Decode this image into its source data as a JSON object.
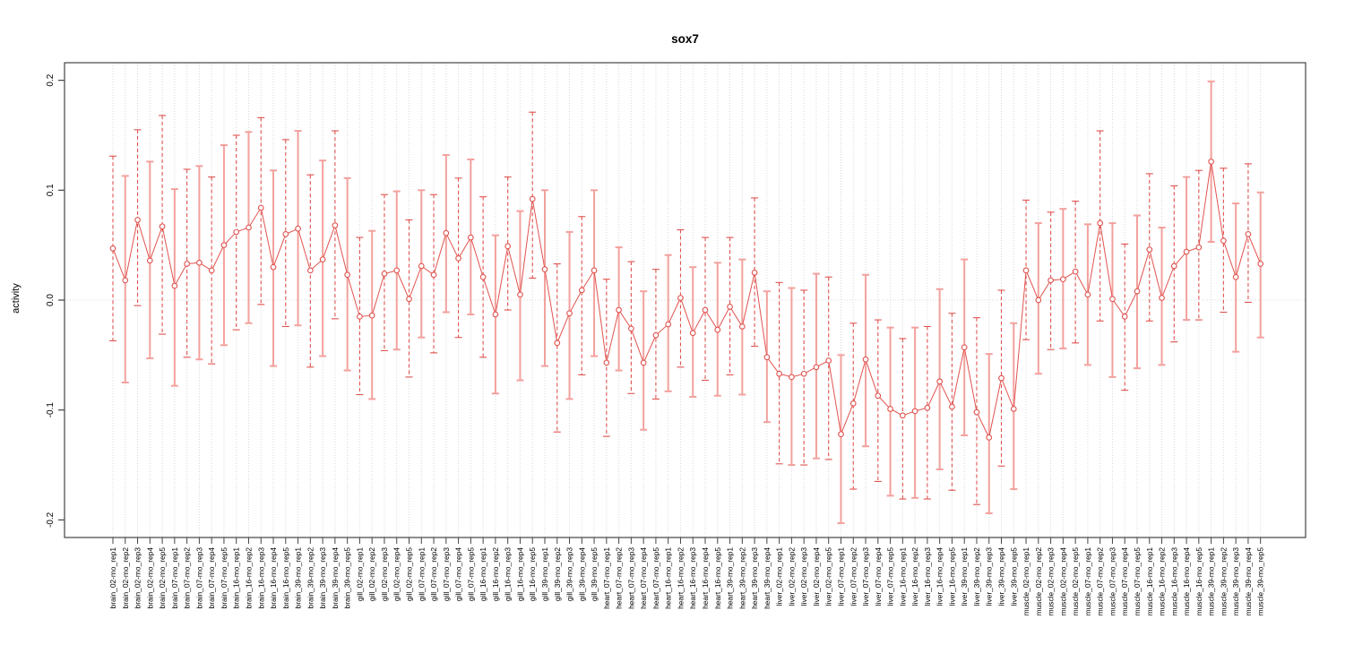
{
  "window": {
    "title": "sox7"
  },
  "chart_data": {
    "type": "line",
    "title": "sox7",
    "xlabel": "",
    "ylabel": "activity",
    "ylim": [
      -0.2,
      0.2
    ],
    "yticks": [
      -0.2,
      -0.1,
      0.0,
      0.1,
      0.2
    ],
    "ytick_labels": [
      "-0.2",
      "-0.1",
      "0.0",
      "0.1",
      "0.2"
    ],
    "grid": "vertical dotted line per category, horizontal dotted line at y=0",
    "legend": "none",
    "point_style": "open-circle",
    "error_bar_style": "alternating dashed red and solid light pink with end caps",
    "colors": {
      "accent": "#e0534f",
      "bar_light": "#f2a19d",
      "grid": "#d9d9d9",
      "axis": "#444444",
      "text": "#000000"
    },
    "categories": [
      "brain_02-mo_rep1",
      "brain_02-mo_rep2",
      "brain_02-mo_rep3",
      "brain_02-mo_rep4",
      "brain_02-mo_rep5",
      "brain_07-mo_rep1",
      "brain_07-mo_rep2",
      "brain_07-mo_rep3",
      "brain_07-mo_rep4",
      "brain_07-mo_rep5",
      "brain_16-mo_rep1",
      "brain_16-mo_rep2",
      "brain_16-mo_rep3",
      "brain_16-mo_rep4",
      "brain_16-mo_rep5",
      "brain_39-mo_rep1",
      "brain_39-mo_rep2",
      "brain_39-mo_rep3",
      "brain_39-mo_rep4",
      "brain_39-mo_rep5",
      "gill_02-mo_rep1",
      "gill_02-mo_rep2",
      "gill_02-mo_rep3",
      "gill_02-mo_rep4",
      "gill_02-mo_rep5",
      "gill_07-mo_rep1",
      "gill_07-mo_rep2",
      "gill_07-mo_rep3",
      "gill_07-mo_rep4",
      "gill_07-mo_rep5",
      "gill_16-mo_rep1",
      "gill_16-mo_rep2",
      "gill_16-mo_rep3",
      "gill_16-mo_rep4",
      "gill_16-mo_rep5",
      "gill_39-mo_rep1",
      "gill_39-mo_rep2",
      "gill_39-mo_rep3",
      "gill_39-mo_rep4",
      "gill_39-mo_rep5",
      "heart_07-mo_rep1",
      "heart_07-mo_rep2",
      "heart_07-mo_rep3",
      "heart_07-mo_rep4",
      "heart_07-mo_rep5",
      "heart_16-mo_rep1",
      "heart_16-mo_rep2",
      "heart_16-mo_rep3",
      "heart_16-mo_rep4",
      "heart_16-mo_rep5",
      "heart_39-mo_rep1",
      "heart_39-mo_rep2",
      "heart_39-mo_rep3",
      "heart_39-mo_rep4",
      "liver_02-mo_rep1",
      "liver_02-mo_rep2",
      "liver_02-mo_rep3",
      "liver_02-mo_rep4",
      "liver_02-mo_rep5",
      "liver_07-mo_rep1",
      "liver_07-mo_rep2",
      "liver_07-mo_rep3",
      "liver_07-mo_rep4",
      "liver_07-mo_rep5",
      "liver_16-mo_rep1",
      "liver_16-mo_rep2",
      "liver_16-mo_rep3",
      "liver_16-mo_rep4",
      "liver_16-mo_rep5",
      "liver_39-mo_rep1",
      "liver_39-mo_rep2",
      "liver_39-mo_rep3",
      "liver_39-mo_rep4",
      "liver_39-mo_rep5",
      "muscle_02-mo_rep1",
      "muscle_02-mo_rep2",
      "muscle_02-mo_rep3",
      "muscle_02-mo_rep4",
      "muscle_02-mo_rep5",
      "muscle_07-mo_rep1",
      "muscle_07-mo_rep2",
      "muscle_07-mo_rep3",
      "muscle_07-mo_rep4",
      "muscle_07-mo_rep5",
      "muscle_16-mo_rep1",
      "muscle_16-mo_rep2",
      "muscle_16-mo_rep3",
      "muscle_16-mo_rep4",
      "muscle_16-mo_rep5",
      "muscle_39-mo_rep1",
      "muscle_39-mo_rep2",
      "muscle_39-mo_rep3",
      "muscle_39-mo_rep4",
      "muscle_39-mo_rep5"
    ],
    "values": [
      0.047,
      0.018,
      0.073,
      0.036,
      0.067,
      0.013,
      0.033,
      0.034,
      0.027,
      0.05,
      0.062,
      0.066,
      0.084,
      0.03,
      0.06,
      0.065,
      0.027,
      0.037,
      0.068,
      0.023,
      -0.015,
      -0.014,
      0.024,
      0.027,
      0.001,
      0.031,
      0.023,
      0.061,
      0.038,
      0.057,
      0.021,
      -0.013,
      0.049,
      0.005,
      0.092,
      0.028,
      -0.039,
      -0.012,
      0.009,
      0.027,
      -0.057,
      -0.009,
      -0.026,
      -0.057,
      -0.032,
      -0.022,
      0.002,
      -0.03,
      -0.009,
      -0.027,
      -0.006,
      -0.024,
      0.025,
      -0.052,
      -0.067,
      -0.07,
      -0.067,
      -0.061,
      -0.055,
      -0.122,
      -0.094,
      -0.054,
      -0.087,
      -0.099,
      -0.105,
      -0.101,
      -0.098,
      -0.074,
      -0.097,
      -0.043,
      -0.102,
      -0.125,
      -0.071,
      -0.099,
      0.027,
      0.0,
      0.018,
      0.019,
      0.026,
      0.005,
      0.07,
      0.001,
      -0.015,
      0.008,
      0.046,
      0.002,
      0.031,
      0.044,
      0.048,
      0.126,
      0.054,
      0.021,
      0.06,
      0.033
    ],
    "error_low": [
      -0.037,
      -0.075,
      -0.005,
      -0.053,
      -0.031,
      -0.078,
      -0.052,
      -0.054,
      -0.058,
      -0.041,
      -0.027,
      -0.021,
      -0.004,
      -0.06,
      -0.024,
      -0.023,
      -0.061,
      -0.051,
      -0.017,
      -0.064,
      -0.086,
      -0.09,
      -0.046,
      -0.045,
      -0.07,
      -0.034,
      -0.048,
      -0.011,
      -0.034,
      -0.013,
      -0.052,
      -0.085,
      -0.009,
      -0.073,
      0.02,
      -0.06,
      -0.12,
      -0.09,
      -0.068,
      -0.051,
      -0.124,
      -0.064,
      -0.085,
      -0.118,
      -0.09,
      -0.083,
      -0.061,
      -0.088,
      -0.073,
      -0.087,
      -0.068,
      -0.086,
      -0.042,
      -0.111,
      -0.149,
      -0.15,
      -0.15,
      -0.144,
      -0.145,
      -0.203,
      -0.172,
      -0.133,
      -0.165,
      -0.178,
      -0.181,
      -0.18,
      -0.181,
      -0.154,
      -0.173,
      -0.123,
      -0.186,
      -0.194,
      -0.151,
      -0.172,
      -0.036,
      -0.067,
      -0.045,
      -0.044,
      -0.039,
      -0.059,
      -0.019,
      -0.07,
      -0.082,
      -0.062,
      -0.019,
      -0.059,
      -0.038,
      -0.018,
      -0.018,
      0.053,
      -0.011,
      -0.047,
      -0.002,
      -0.034
    ],
    "error_high": [
      0.131,
      0.113,
      0.155,
      0.126,
      0.168,
      0.101,
      0.119,
      0.122,
      0.112,
      0.141,
      0.15,
      0.153,
      0.166,
      0.118,
      0.146,
      0.154,
      0.114,
      0.127,
      0.154,
      0.111,
      0.057,
      0.063,
      0.096,
      0.099,
      0.073,
      0.1,
      0.096,
      0.132,
      0.111,
      0.128,
      0.094,
      0.059,
      0.112,
      0.081,
      0.171,
      0.1,
      0.033,
      0.062,
      0.076,
      0.1,
      0.019,
      0.048,
      0.035,
      0.008,
      0.028,
      0.041,
      0.064,
      0.03,
      0.057,
      0.034,
      0.057,
      0.037,
      0.093,
      0.008,
      0.016,
      0.011,
      0.009,
      0.024,
      0.021,
      -0.05,
      -0.021,
      0.023,
      -0.018,
      -0.025,
      -0.035,
      -0.025,
      -0.024,
      0.01,
      -0.012,
      0.037,
      -0.016,
      -0.049,
      0.009,
      -0.021,
      0.091,
      0.07,
      0.08,
      0.083,
      0.09,
      0.069,
      0.154,
      0.07,
      0.051,
      0.077,
      0.115,
      0.066,
      0.104,
      0.112,
      0.118,
      0.199,
      0.12,
      0.088,
      0.124,
      0.098
    ]
  }
}
